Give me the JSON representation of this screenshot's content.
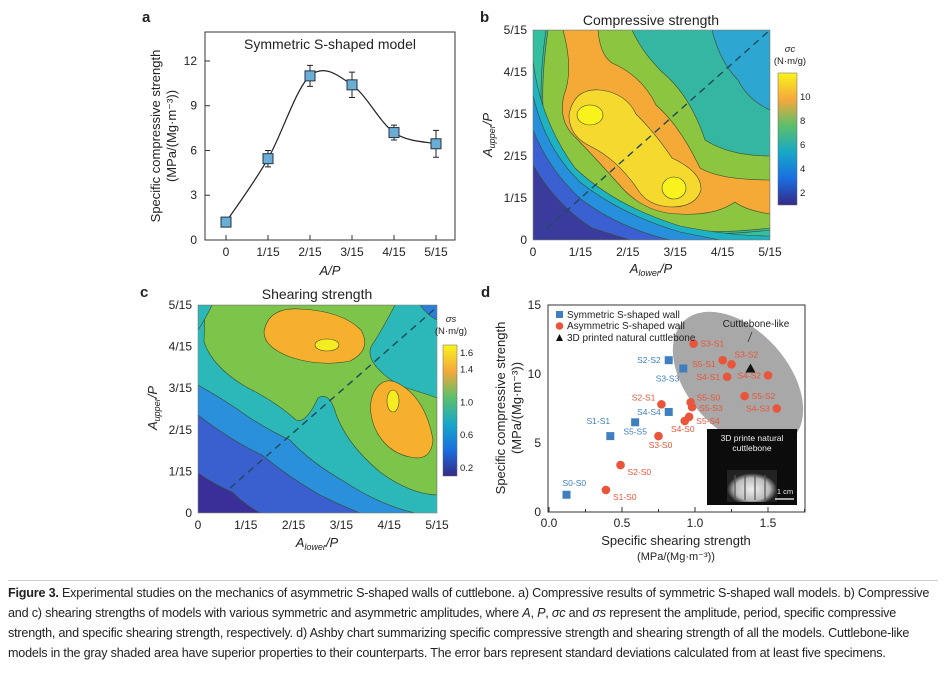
{
  "figure": {
    "caption": {
      "label": "Figure 3.",
      "t1": " Experimental studies on the mechanics of asymmetric S-shaped walls of cuttlebone. a) Compressive results of symmetric S-shaped wall models. b) Compressive and c) shearing strengths of models with various symmetric and asymmetric amplitudes, where ",
      "A": "A",
      "comma1": ", ",
      "P": "P",
      "comma2": ", ",
      "sc": "σc",
      "and": " and ",
      "ss": "σs",
      "t2": " represent the amplitude, period, specific compressive strength, and specific shearing strength, respectively. d) Ashby chart summarizing specific compressive strength and shearing strength of all the models. Cuttlebone-like models in the gray shaded area have superior properties to their counterparts. The error bars represent standard deviations calculated from at least five specimens."
    }
  },
  "colors": {
    "symmetric": "#3f7fbf",
    "asymmetric": "#e8553a",
    "square_fill": "#6aaed6",
    "ellipse": "#a8a8a8"
  },
  "chart_data": [
    {
      "panel": "a",
      "type": "line",
      "title": "Symmetric S-shaped model",
      "xlabel": "A/P",
      "ylabel": "Specific compressive strength",
      "ylabel2": "(MPa/(Mg·m⁻³))",
      "categories": [
        "0",
        "1/15",
        "2/15",
        "3/15",
        "4/15",
        "5/15"
      ],
      "values": [
        1.2,
        5.45,
        11.0,
        10.4,
        7.2,
        6.45
      ],
      "errors": [
        0.3,
        0.55,
        0.7,
        0.85,
        0.5,
        0.9
      ],
      "yticks": [
        "0",
        "3",
        "6",
        "9",
        "12"
      ],
      "ylim": [
        0,
        14
      ],
      "grid": false
    },
    {
      "panel": "b",
      "type": "heatmap",
      "title": "Compressive strength",
      "xlabel": "A_lower/P",
      "xlabel_main": "A",
      "xlabel_sub": "lower",
      "xlabel_tail": "/P",
      "ylabel_main": "A",
      "ylabel_sub": "upper",
      "ylabel_tail": "/P",
      "ticks": [
        "0",
        "1/15",
        "2/15",
        "3/15",
        "4/15",
        "5/15"
      ],
      "colorbar_title": "σc",
      "colorbar_unit": "(N·m/g)",
      "colorbar_ticks": [
        "10",
        "8",
        "6",
        "4",
        "2"
      ],
      "colorbar_range": [
        1,
        12
      ],
      "maxima": [
        {
          "x": "1/15",
          "y": "3/15"
        },
        {
          "x": "3/15",
          "y": "1/15"
        }
      ]
    },
    {
      "panel": "c",
      "type": "heatmap",
      "title": "Shearing strength",
      "xlabel_main": "A",
      "xlabel_sub": "lower",
      "xlabel_tail": "/P",
      "ylabel_main": "A",
      "ylabel_sub": "upper",
      "ylabel_tail": "/P",
      "ticks": [
        "0",
        "1/15",
        "2/15",
        "3/15",
        "4/15",
        "5/15"
      ],
      "colorbar_title": "σs",
      "colorbar_unit": "(N·m/g)",
      "colorbar_ticks": [
        "1.6",
        "1.4",
        "1.0",
        "0.6",
        "0.2"
      ],
      "colorbar_range": [
        0.1,
        1.7
      ],
      "maxima": [
        {
          "x": "2.7/15",
          "y": "4/15"
        },
        {
          "x": "4/15",
          "y": "2.7/15"
        }
      ]
    },
    {
      "panel": "d",
      "type": "scatter",
      "xlabel": "Specific shearing strength",
      "xlabel2": "(MPa/(Mg·m⁻³))",
      "ylabel": "Specific compressive strength",
      "ylabel2": "(MPa/(Mg·m⁻³))",
      "xlim": [
        0,
        1.75
      ],
      "ylim": [
        0,
        15
      ],
      "xticks": [
        "0.0",
        "0.5",
        "1.0",
        "1.5"
      ],
      "yticks": [
        "0",
        "5",
        "10",
        "15"
      ],
      "legend": [
        "Symmetric S-shaped wall",
        "Asymmetric S-shaped wall",
        "3D printed natural cuttlebone"
      ],
      "legend_position": "top-left",
      "region_label": "Cuttlebone-like",
      "inset_title": "3D printe natural cuttlebone",
      "inset_title1": "3D printe natural",
      "inset_title2": "cuttlebone",
      "inset_scale": "1 cm",
      "series": [
        {
          "name": "Symmetric S-shaped wall",
          "marker": "square",
          "points": [
            {
              "label": "S0-S0",
              "x": 0.12,
              "y": 1.25
            },
            {
              "label": "S1-S1",
              "x": 0.42,
              "y": 5.5
            },
            {
              "label": "S5-S5",
              "x": 0.59,
              "y": 6.5
            },
            {
              "label": "S4-S4",
              "x": 0.82,
              "y": 7.25
            },
            {
              "label": "S2-S2",
              "x": 0.82,
              "y": 11.0
            },
            {
              "label": "S3-S3",
              "x": 0.92,
              "y": 10.4
            }
          ]
        },
        {
          "name": "Asymmetric S-shaped wall",
          "marker": "circle",
          "points": [
            {
              "label": "S1-S0",
              "x": 0.39,
              "y": 1.6
            },
            {
              "label": "S2-S0",
              "x": 0.49,
              "y": 3.4
            },
            {
              "label": "S3-S0",
              "x": 0.75,
              "y": 5.5
            },
            {
              "label": "S2-S1",
              "x": 0.77,
              "y": 7.8
            },
            {
              "label": "S4-S0",
              "x": 0.93,
              "y": 6.6
            },
            {
              "label": "S5-S4",
              "x": 0.96,
              "y": 6.9
            },
            {
              "label": "S5-S3",
              "x": 0.98,
              "y": 7.6
            },
            {
              "label": "S5-S0",
              "x": 0.97,
              "y": 7.95
            },
            {
              "label": "S3-S1",
              "x": 0.99,
              "y": 12.2
            },
            {
              "label": "S3-S2",
              "x": 1.25,
              "y": 10.7
            },
            {
              "label": "S5-S1",
              "x": 1.19,
              "y": 11.0
            },
            {
              "label": "S4-S1",
              "x": 1.22,
              "y": 9.8
            },
            {
              "label": "S4-S2",
              "x": 1.5,
              "y": 9.9
            },
            {
              "label": "S5-S2",
              "x": 1.34,
              "y": 8.4
            },
            {
              "label": "S4-S3",
              "x": 1.56,
              "y": 7.5
            }
          ]
        },
        {
          "name": "3D printed natural cuttlebone",
          "marker": "triangle",
          "points": [
            {
              "label": "",
              "x": 1.38,
              "y": 10.4
            }
          ]
        }
      ]
    }
  ]
}
